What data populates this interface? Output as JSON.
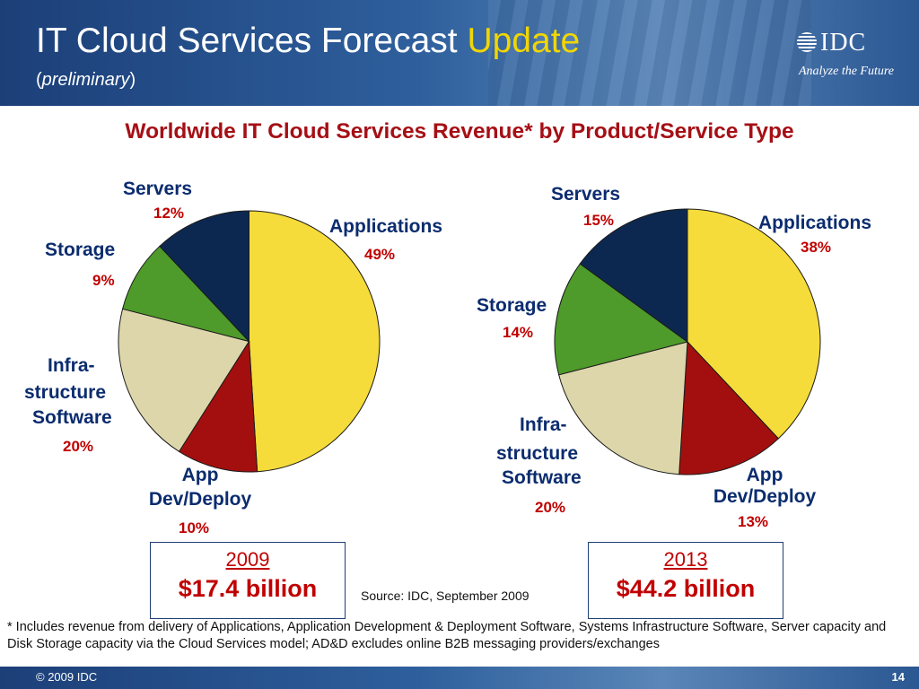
{
  "slide": {
    "title_main": "IT Cloud Services Forecast ",
    "title_highlight": "Update",
    "subtitle_open": "(",
    "subtitle_italic": "preliminary",
    "subtitle_close": ")",
    "logo_text": "IDC",
    "logo_tagline": "Analyze the Future",
    "heading": "Worldwide IT Cloud Services Revenue* by Product/Service Type",
    "source": "Source: IDC, September 2009",
    "footnote": "* Includes revenue from delivery of Applications, Application Development & Deployment Software, Systems Infrastructure Software, Server capacity and Disk Storage capacity via the Cloud Services model; AD&D excludes online B2B messaging providers/exchanges",
    "copyright": "© 2009 IDC",
    "page_number": "14"
  },
  "colors": {
    "applications": "#f5dc3a",
    "app_dev_deploy": "#a30f0f",
    "infrastructure_software": "#ddd6aa",
    "storage": "#4e9a2a",
    "servers": "#0d2850"
  },
  "chart_data": [
    {
      "type": "pie",
      "title": "2009",
      "total": "$17.4 billion",
      "slices": [
        {
          "key": "applications",
          "label": "Applications",
          "pct_text": "49%",
          "value": 49
        },
        {
          "key": "app_dev_deploy",
          "label_line1": "App",
          "label_line2": "Dev/Deploy",
          "pct_text": "10%",
          "value": 10
        },
        {
          "key": "infrastructure_software",
          "label_line1": "Infra-",
          "label_line2": "structure",
          "label_line3": "Software",
          "pct_text": "20%",
          "value": 20
        },
        {
          "key": "storage",
          "label": "Storage",
          "pct_text": "9%",
          "value": 9
        },
        {
          "key": "servers",
          "label": "Servers",
          "pct_text": "12%",
          "value": 12
        }
      ]
    },
    {
      "type": "pie",
      "title": "2013",
      "total": "$44.2 billion",
      "slices": [
        {
          "key": "applications",
          "label": "Applications",
          "pct_text": "38%",
          "value": 38
        },
        {
          "key": "app_dev_deploy",
          "label_line1": "App",
          "label_line2": "Dev/Deploy",
          "pct_text": "13%",
          "value": 13
        },
        {
          "key": "infrastructure_software",
          "label_line1": "Infra-",
          "label_line2": "structure",
          "label_line3": "Software",
          "pct_text": "20%",
          "value": 20
        },
        {
          "key": "storage",
          "label": "Storage",
          "pct_text": "14%",
          "value": 14
        },
        {
          "key": "servers",
          "label": "Servers",
          "pct_text": "15%",
          "value": 15
        }
      ]
    }
  ]
}
